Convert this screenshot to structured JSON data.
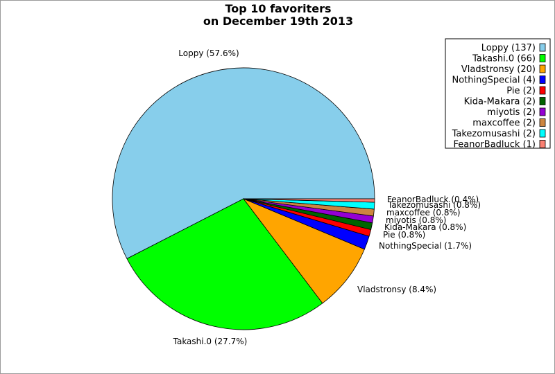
{
  "chart_data": {
    "type": "pie",
    "title": "Top 10 favoriters",
    "subtitle": "on December 19th 2013",
    "legend_position": "top-right",
    "slices": [
      {
        "name": "Loppy",
        "value": 137,
        "percent_label": "Loppy (57.6%)",
        "legend_label": "Loppy (137)",
        "color": "#87ceeb"
      },
      {
        "name": "Takashi.0",
        "value": 66,
        "percent_label": "Takashi.0 (27.7%)",
        "legend_label": "Takashi.0 (66)",
        "color": "#00ff00"
      },
      {
        "name": "Vladstronsy",
        "value": 20,
        "percent_label": "Vladstronsy (8.4%)",
        "legend_label": "Vladstronsy (20)",
        "color": "#ffa500"
      },
      {
        "name": "NothingSpecial",
        "value": 4,
        "percent_label": "NothingSpecial (1.7%)",
        "legend_label": "NothingSpecial (4)",
        "color": "#0000ff"
      },
      {
        "name": "Pie",
        "value": 2,
        "percent_label": "Pie (0.8%)",
        "legend_label": "Pie (2)",
        "color": "#ff0000"
      },
      {
        "name": "Kida-Makara",
        "value": 2,
        "percent_label": "Kida-Makara (0.8%)",
        "legend_label": "Kida-Makara (2)",
        "color": "#006400"
      },
      {
        "name": "miyotis",
        "value": 2,
        "percent_label": "miyotis (0.8%)",
        "legend_label": "miyotis (2)",
        "color": "#9400d3"
      },
      {
        "name": "maxcoffee",
        "value": 2,
        "percent_label": "maxcoffee (0.8%)",
        "legend_label": "maxcoffee (2)",
        "color": "#cd853f"
      },
      {
        "name": "Takezomusashi",
        "value": 2,
        "percent_label": "Takezomusashi (0.8%)",
        "legend_label": "Takezomusashi (2)",
        "color": "#00ffff"
      },
      {
        "name": "FeanorBadluck",
        "value": 1,
        "percent_label": "FeanorBadluck (0.4%)",
        "legend_label": "FeanorBadluck (1)",
        "color": "#fa8072"
      }
    ]
  }
}
